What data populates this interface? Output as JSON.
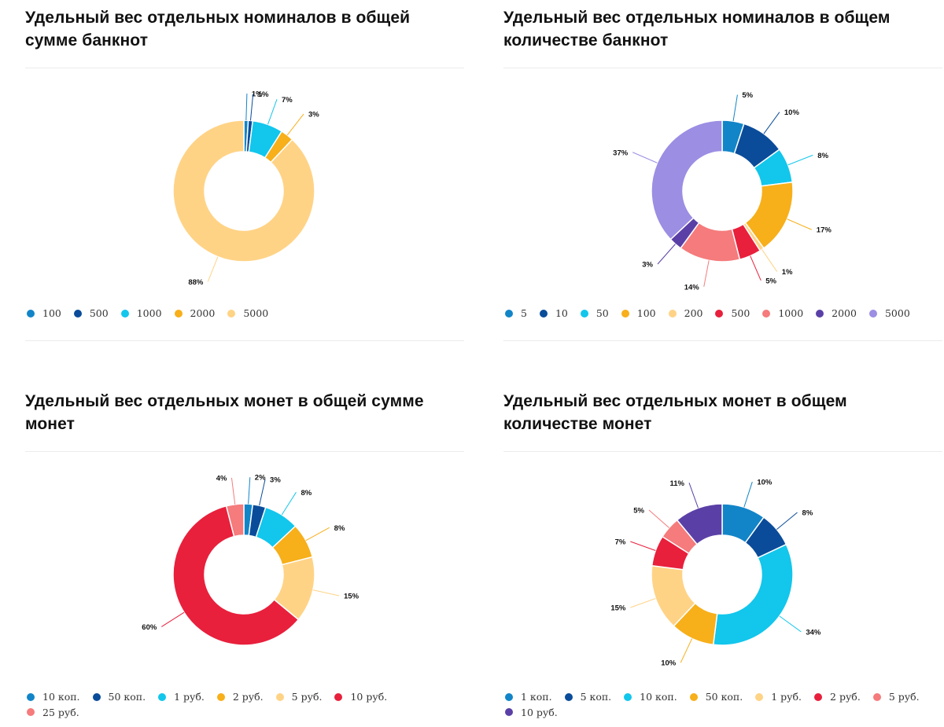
{
  "chart_data": [
    {
      "type": "pie",
      "title": "Удельный вес отдельных номиналов в общей сумме банкнот",
      "categories": [
        "100",
        "500",
        "1000",
        "2000",
        "5000"
      ],
      "values": [
        1,
        1,
        7,
        3,
        88
      ],
      "labels": [
        "1%",
        "1%",
        "7%",
        "3%",
        "88%"
      ],
      "colors": [
        "#1285c8",
        "#0a4c9a",
        "#12c6ec",
        "#f7af1a",
        "#ffd386"
      ],
      "legend": "bottom-left"
    },
    {
      "type": "pie",
      "title": "Удельный вес отдельных номиналов в общем количестве банкнот",
      "categories": [
        "5",
        "10",
        "50",
        "100",
        "200",
        "500",
        "1000",
        "2000",
        "5000"
      ],
      "values": [
        5,
        10,
        8,
        17,
        1,
        5,
        14,
        3,
        37
      ],
      "labels": [
        "5%",
        "10%",
        "8%",
        "17%",
        "1%",
        "5%",
        "14%",
        "3%",
        "37%"
      ],
      "colors": [
        "#1285c8",
        "#0a4c9a",
        "#12c6ec",
        "#f7af1a",
        "#ffd386",
        "#e8203c",
        "#f57b7c",
        "#5a40a6",
        "#9b8ee3"
      ],
      "legend": "bottom-left"
    },
    {
      "type": "pie",
      "title": "Удельный вес отдельных монет в общей сумме монет",
      "categories": [
        "10 коп.",
        "50 коп.",
        "1 руб.",
        "2 руб.",
        "5 руб.",
        "10 руб.",
        "25 руб."
      ],
      "values": [
        2,
        3,
        8,
        8,
        15,
        60,
        4
      ],
      "labels": [
        "2%",
        "3%",
        "8%",
        "8%",
        "15%",
        "60%",
        "4%"
      ],
      "colors": [
        "#1285c8",
        "#0a4c9a",
        "#12c6ec",
        "#f7af1a",
        "#ffd386",
        "#e8203c",
        "#f57b7c"
      ],
      "legend": "bottom-left"
    },
    {
      "type": "pie",
      "title": "Удельный вес отдельных монет в общем количестве монет",
      "categories": [
        "1 коп.",
        "5 коп.",
        "10 коп.",
        "50 коп.",
        "1 руб.",
        "2 руб.",
        "5 руб.",
        "10 руб."
      ],
      "values": [
        10,
        8,
        34,
        10,
        15,
        7,
        5,
        11
      ],
      "labels": [
        "10%",
        "8%",
        "34%",
        "10%",
        "15%",
        "7%",
        "5%",
        "11%"
      ],
      "colors": [
        "#1285c8",
        "#0a4c9a",
        "#12c6ec",
        "#f7af1a",
        "#ffd386",
        "#e8203c",
        "#f57b7c",
        "#5a40a6"
      ],
      "legend": "bottom-left"
    }
  ]
}
